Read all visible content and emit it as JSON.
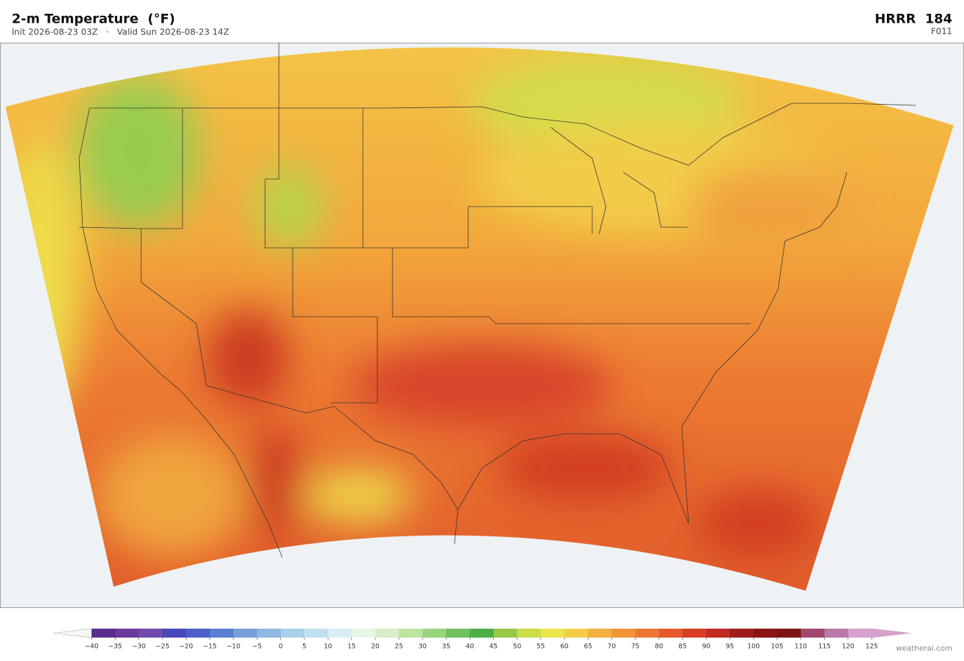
{
  "header": {
    "title": "2-m Temperature  (°F)",
    "subtitle": "Init 2026-08-23 03Z   ·   Valid Sun 2026-08-23 14Z",
    "model": "HRRR  184",
    "forecast_hour": "F011"
  },
  "colorbar": {
    "ticks": [
      {
        "value": -40,
        "label": "−40"
      },
      {
        "value": -35,
        "label": "−35"
      },
      {
        "value": -30,
        "label": "−30"
      },
      {
        "value": -25,
        "label": "−25"
      },
      {
        "value": -20,
        "label": "−20"
      },
      {
        "value": -15,
        "label": "−15"
      },
      {
        "value": -10,
        "label": "−10"
      },
      {
        "value": -5,
        "label": "−5"
      },
      0,
      5,
      10,
      15,
      20,
      25,
      30,
      35,
      40,
      45,
      50,
      55,
      60,
      65,
      70,
      75,
      80,
      85,
      90,
      95,
      100,
      105,
      110,
      115,
      120,
      125
    ],
    "colors": [
      "#5a2d8c",
      "#6a3a9c",
      "#6f4aac",
      "#4848b8",
      "#4a60c8",
      "#5a80d0",
      "#78a0d8",
      "#90b8e0",
      "#a8d0e8",
      "#c0e0f0",
      "#d8eef4",
      "#e8f6e8",
      "#d8eec8",
      "#bce4a0",
      "#98d47c",
      "#70c060",
      "#4caf48",
      "#98c848",
      "#cadc48",
      "#ece44c",
      "#f4cc48",
      "#f2b040",
      "#f09438",
      "#ec7834",
      "#e45a2c",
      "#d83e24",
      "#c02a20",
      "#a01c1c",
      "#8c1414",
      "#7a1414",
      "#a04870",
      "#b878a8",
      "#d8a0cc"
    ],
    "under_color": "#f6f6f6",
    "over_color": "#d8a0cc"
  },
  "watermark": "weatherai.com"
}
